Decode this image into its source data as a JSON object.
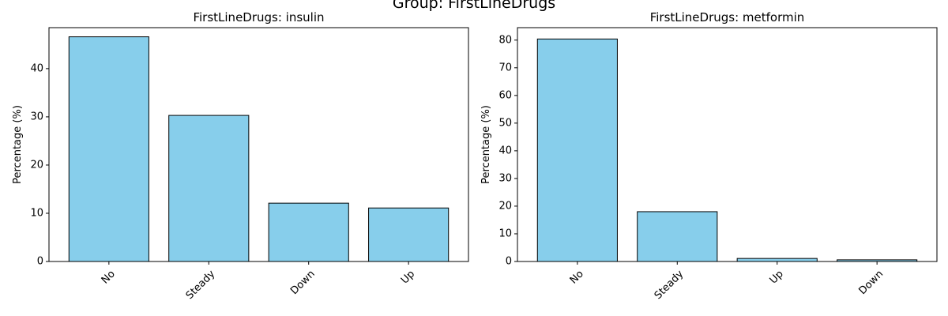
{
  "figure_title": "Group: FirstLineDrugs",
  "colors": {
    "bar_fill": "#87CEEB",
    "bar_edge": "#000000"
  },
  "chart_data": [
    {
      "type": "bar",
      "title": "FirstLineDrugs: insulin",
      "xlabel": "",
      "ylabel": "Percentage (%)",
      "categories": [
        "No",
        "Steady",
        "Down",
        "Up"
      ],
      "values": [
        46.6,
        30.3,
        12.1,
        11.1
      ],
      "ylim": [
        0,
        48.5
      ],
      "yticks": [
        0,
        10,
        20,
        30,
        40
      ],
      "grid": false
    },
    {
      "type": "bar",
      "title": "FirstLineDrugs: metformin",
      "xlabel": "",
      "ylabel": "Percentage (%)",
      "categories": [
        "No",
        "Steady",
        "Up",
        "Down"
      ],
      "values": [
        80.4,
        18.0,
        1.1,
        0.6
      ],
      "ylim": [
        0,
        84.5
      ],
      "yticks": [
        0,
        10,
        20,
        30,
        40,
        50,
        60,
        70,
        80
      ],
      "grid": false
    }
  ]
}
